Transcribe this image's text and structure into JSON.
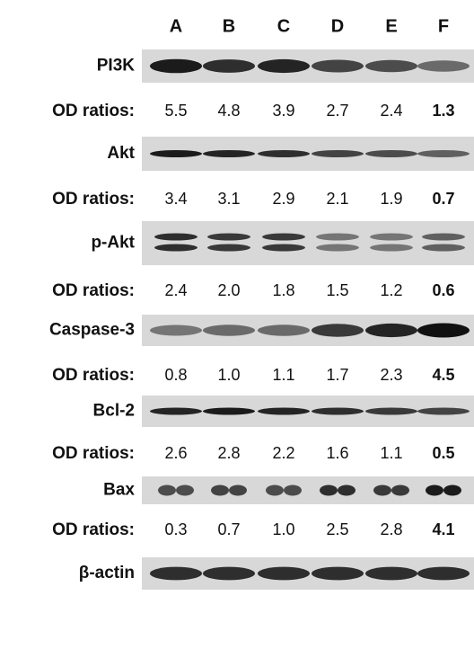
{
  "lanes": [
    "A",
    "B",
    "C",
    "D",
    "E",
    "F"
  ],
  "rows": [
    {
      "label": "PI3K",
      "od_label": "OD ratios:",
      "od": [
        "5.5",
        "4.8",
        "3.9",
        "2.7",
        "2.4",
        "1.3"
      ]
    },
    {
      "label": "Akt",
      "od_label": "OD ratios:",
      "od": [
        "3.4",
        "3.1",
        "2.9",
        "2.1",
        "1.9",
        "0.7"
      ]
    },
    {
      "label": "p-Akt",
      "od_label": "OD ratios:",
      "od": [
        "2.4",
        "2.0",
        "1.8",
        "1.5",
        "1.2",
        "0.6"
      ]
    },
    {
      "label": "Caspase-3",
      "od_label": "OD ratios:",
      "od": [
        "0.8",
        "1.0",
        "1.1",
        "1.7",
        "2.3",
        "4.5"
      ]
    },
    {
      "label": "Bcl-2",
      "od_label": "OD ratios:",
      "od": [
        "2.6",
        "2.8",
        "2.2",
        "1.6",
        "1.1",
        "0.5"
      ]
    },
    {
      "label": "Bax",
      "od_label": "OD ratios:",
      "od": [
        "0.3",
        "0.7",
        "1.0",
        "2.5",
        "2.8",
        "4.1"
      ]
    }
  ],
  "control": {
    "label": "β-actin"
  }
}
